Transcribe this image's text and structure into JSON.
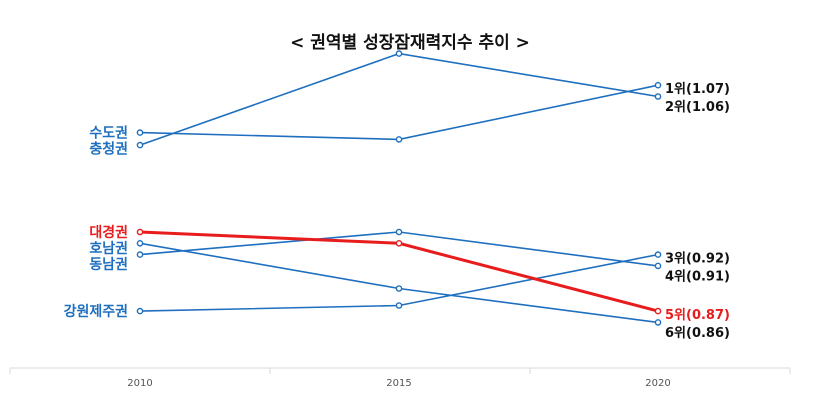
{
  "chart_data": {
    "type": "line",
    "title": "< 권역별 성장잠재력지수 추이 >",
    "xlabel": "",
    "ylabel": "",
    "x": [
      "2010",
      "2015",
      "2020"
    ],
    "ylim": [
      0.84,
      1.11
    ],
    "grid": false,
    "series": [
      {
        "name": "수도권",
        "values": [
          1.028,
          1.022,
          1.07
        ],
        "color": "#1f6fbf",
        "end_label": "1위(1.07)"
      },
      {
        "name": "충청권",
        "values": [
          1.017,
          1.098,
          1.06
        ],
        "color": "#1f6fbf",
        "end_label": "2위(1.06)"
      },
      {
        "name": "대경권",
        "values": [
          0.94,
          0.93,
          0.87
        ],
        "color": "#e81c1c",
        "end_label": "5위(0.87)"
      },
      {
        "name": "호남권",
        "values": [
          0.93,
          0.89,
          0.86
        ],
        "color": "#1f6fbf",
        "end_label": "6위(0.86)"
      },
      {
        "name": "동남권",
        "values": [
          0.92,
          0.94,
          0.91
        ],
        "color": "#1f6fbf",
        "end_label": "4위(0.91)"
      },
      {
        "name": "강원제주권",
        "values": [
          0.87,
          0.875,
          0.92
        ],
        "color": "#1f6fbf",
        "end_label": "3위(0.92)"
      }
    ]
  }
}
